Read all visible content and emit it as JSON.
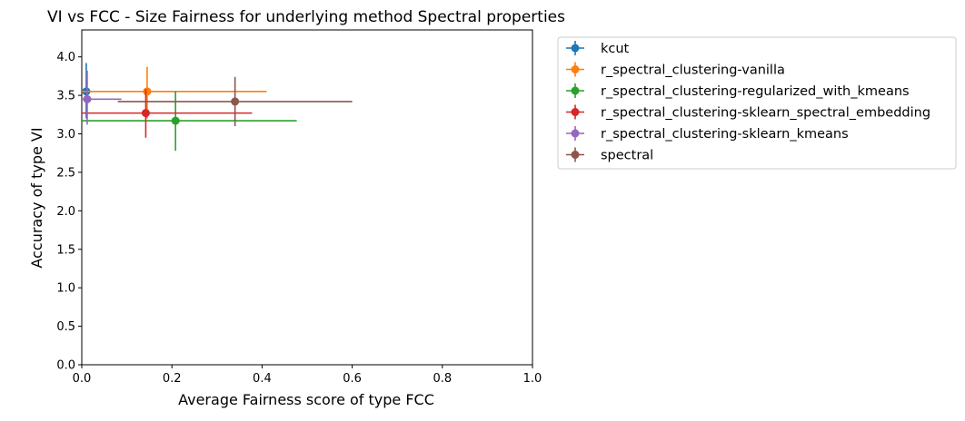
{
  "chart_data": {
    "type": "scatter",
    "title": "VI vs FCC - Size Fairness for underlying method Spectral properties",
    "xlabel": "Average Fairness score of type FCC",
    "ylabel": "Accuracy of type VI",
    "xlim": [
      0,
      1.0
    ],
    "ylim": [
      0,
      4.35
    ],
    "xticks": [
      "0.0",
      "0.2",
      "0.4",
      "0.6",
      "0.8",
      "1.0"
    ],
    "yticks": [
      "0.0",
      "0.5",
      "1.0",
      "1.5",
      "2.0",
      "2.5",
      "3.0",
      "3.5",
      "4.0"
    ],
    "grid": false,
    "legend_position": "outside-right",
    "error_bars": true,
    "series": [
      {
        "name": "kcut",
        "color": "#1f77b4",
        "x": 0.01,
        "y": 3.55,
        "x_err": [
          0.0,
          0.02
        ],
        "y_err": [
          3.2,
          3.92
        ]
      },
      {
        "name": "r_spectral_clustering-vanilla",
        "color": "#ff7f0e",
        "x": 0.145,
        "y": 3.55,
        "x_err": [
          0.0,
          0.41
        ],
        "y_err": [
          3.2,
          3.87
        ]
      },
      {
        "name": "r_spectral_clustering-regularized_with_kmeans",
        "color": "#2ca02c",
        "x": 0.208,
        "y": 3.17,
        "x_err": [
          0.0,
          0.477
        ],
        "y_err": [
          2.78,
          3.55
        ]
      },
      {
        "name": "r_spectral_clustering-sklearn_spectral_embedding",
        "color": "#d62728",
        "x": 0.142,
        "y": 3.27,
        "x_err": [
          0.0,
          0.378
        ],
        "y_err": [
          2.95,
          3.58
        ]
      },
      {
        "name": "r_spectral_clustering-sklearn_kmeans",
        "color": "#9467bd",
        "x": 0.012,
        "y": 3.45,
        "x_err": [
          0.0,
          0.088
        ],
        "y_err": [
          3.12,
          3.82
        ]
      },
      {
        "name": "spectral",
        "color": "#8c564b",
        "x": 0.34,
        "y": 3.42,
        "x_err": [
          0.08,
          0.6
        ],
        "y_err": [
          3.1,
          3.74
        ]
      }
    ]
  }
}
